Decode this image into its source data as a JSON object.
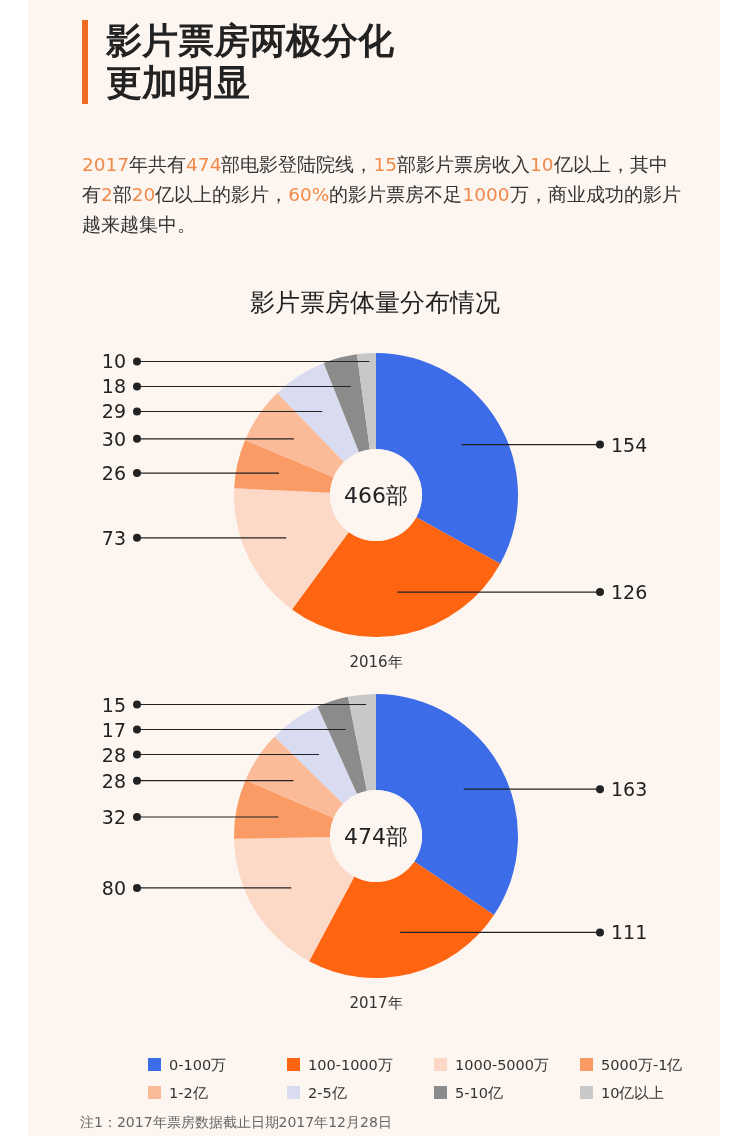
{
  "chart_data": [
    {
      "type": "donut",
      "title": "影片票房两极分化更加明显",
      "subtitle": "2017年共有474部电影登陆院线，15部影片票房收入10亿以上，其中有2部20亿以上的影片，60%的影片票房不足1000万，商业成功的影片越来越集中。",
      "annotations": [
        "影片票房体量分布情况",
        "466部"
      ],
      "xlabel": "2016年",
      "categories": [
        null,
        null,
        null,
        null,
        null,
        null,
        null,
        null
      ],
      "values": [
        154,
        126,
        73,
        26,
        30,
        29,
        18,
        10
      ],
      "colors": [
        "#3d6ce8",
        "#ff6410",
        "#fcd9c6",
        "#fa9b66",
        "#fbbb98",
        "#d9dcf0",
        "#8b8b8b",
        "#c8c8c8"
      ],
      "data_labels": true
    },
    {
      "type": "donut",
      "annotations": [
        "474部",
        "注1：2017年票房数据截止日期2017年12月28日"
      ],
      "xlabel": "2017年",
      "categories": [
        "0-100万",
        "100-1000万",
        "1000-5000万",
        "5000万-1亿",
        "1-2亿",
        "2-5亿",
        "5-10亿",
        "10亿以上"
      ],
      "values": [
        163,
        111,
        80,
        32,
        28,
        28,
        17,
        15
      ],
      "colors": [
        "#3d6ce8",
        "#ff6410",
        "#fcd9c6",
        "#fa9b66",
        "#fbbb98",
        "#d9dcf0",
        "#8b8b8b",
        "#c8c8c8"
      ],
      "data_labels": true,
      "legend": "bottom"
    }
  ]
}
